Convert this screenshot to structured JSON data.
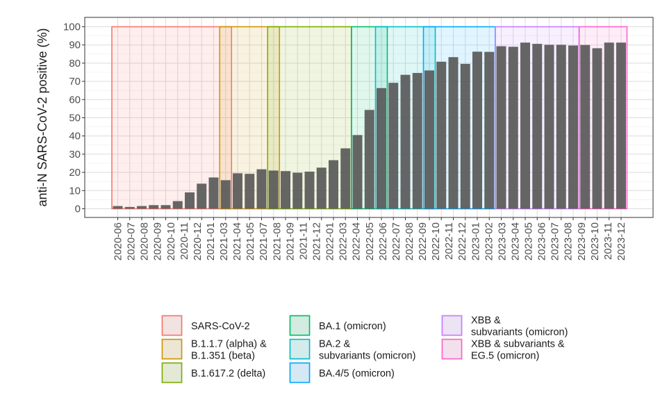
{
  "chart_data": {
    "type": "bar",
    "ylabel": "anti-N SARS-CoV-2 positive (%)",
    "xlabel": "",
    "title": "",
    "ylim": [
      0,
      100
    ],
    "yticks": [
      0,
      10,
      20,
      30,
      40,
      50,
      60,
      70,
      80,
      90,
      100
    ],
    "grid": true,
    "bar_color": "#595959",
    "categories": [
      "2020-06",
      "2020-07",
      "2020-08",
      "2020-09",
      "2020-10",
      "2020-11",
      "2020-12",
      "2021-01",
      "2021-02",
      "2021-03",
      "2021-04",
      "2021-05",
      "2021-06",
      "2021-07",
      "2021-08",
      "2021-09",
      "2021-10",
      "2021-11",
      "2021-12",
      "2022-01",
      "2022-02",
      "2022-03",
      "2022-04",
      "2022-05",
      "2022-06",
      "2022-07",
      "2022-08",
      "2022-09",
      "2022-10",
      "2022-11",
      "2022-12",
      "2023-01",
      "2023-02",
      "2023-03",
      "2023-04",
      "2023-05",
      "2023-06",
      "2023-07",
      "2023-08",
      "2023-09",
      "2023-10",
      "2023-11",
      "2023-12"
    ],
    "tick_labels": [
      "2020-06",
      "2020-07",
      "2020-08",
      "2020-09",
      "2020-10",
      "2020-11",
      "2020-12",
      "2021-01",
      "2021-03",
      "2021-04",
      "2021-05",
      "2021-07",
      "2021-08",
      "2021-09",
      "2021-11",
      "2021-12",
      "2022-01",
      "2022-03",
      "2022-04",
      "2022-05",
      "2022-06",
      "2022-07",
      "2022-08",
      "2022-09",
      "2022-10",
      "2022-11",
      "2022-12",
      "2023-01",
      "2023-02",
      "2023-03",
      "2023-04",
      "2023-05",
      "2023-06",
      "2023-07",
      "2023-08",
      "2023-09",
      "2023-10",
      "2023-11",
      "2023-12"
    ],
    "values": [
      1.5,
      1.0,
      1.5,
      2.0,
      2.0,
      4.2,
      9.0,
      13.8,
      17.2,
      15.7,
      19.5,
      19.2,
      21.7,
      21.0,
      20.7,
      19.8,
      20.4,
      22.6,
      26.7,
      33.2,
      40.5,
      54.3,
      66.3,
      69.2,
      73.6,
      74.6,
      76.0,
      80.8,
      83.3,
      79.6,
      86.3,
      86.2,
      89.3,
      89.0,
      91.3,
      90.6,
      90.1,
      90.1,
      89.7,
      90.0,
      88.2,
      91.3,
      91.3
    ],
    "variant_periods": [
      {
        "name": "SARS-CoV-2",
        "start": "2020-06",
        "end": "2021-03",
        "color": "#f8766d"
      },
      {
        "name": "B.1.1.7 (alpha) & B.1.351 (beta)",
        "start": "2021-03",
        "end": "2021-07",
        "color": "#cd9600"
      },
      {
        "name": "B.1.617.2 (delta)",
        "start": "2021-07",
        "end": "2022-01",
        "color": "#7cae00"
      },
      {
        "name": "BA.1 (omicron)",
        "start": "2022-02",
        "end": "2022-04",
        "color": "#00be67"
      },
      {
        "name": "BA.2 & subvariants (omicron)",
        "start": "2022-04",
        "end": "2022-08",
        "color": "#00bfc4"
      },
      {
        "name": "BA.4/5 (omicron)",
        "start": "2022-08",
        "end": "2023-01",
        "color": "#00a9ff"
      },
      {
        "name": "XBB & subvariants (omicron)",
        "start": "2023-02",
        "end": "2023-08",
        "color": "#c77cff"
      },
      {
        "name": "XBB & subvariants & EG.5 (omicron)",
        "start": "2023-09",
        "end": "2023-12",
        "color": "#ff61cc"
      }
    ],
    "legend": {
      "columns": [
        [
          {
            "lines": [
              "SARS-CoV-2"
            ],
            "color": "#f8766d"
          },
          {
            "lines": [
              "B.1.1.7 (alpha) &",
              "B.1.351 (beta)"
            ],
            "color": "#cd9600"
          },
          {
            "lines": [
              "B.1.617.2 (delta)"
            ],
            "color": "#7cae00"
          }
        ],
        [
          {
            "lines": [
              "BA.1 (omicron)"
            ],
            "color": "#00be67"
          },
          {
            "lines": [
              "BA.2 &",
              "subvariants (omicron)"
            ],
            "color": "#00bfc4"
          },
          {
            "lines": [
              "BA.4/5 (omicron)"
            ],
            "color": "#00a9ff"
          }
        ],
        [
          {
            "lines": [
              "XBB &",
              "subvariants (omicron)"
            ],
            "color": "#c77cff"
          },
          {
            "lines": [
              "XBB & subvariants &",
              "EG.5 (omicron)"
            ],
            "color": "#ff61cc"
          }
        ]
      ],
      "placement": "bottom"
    }
  }
}
